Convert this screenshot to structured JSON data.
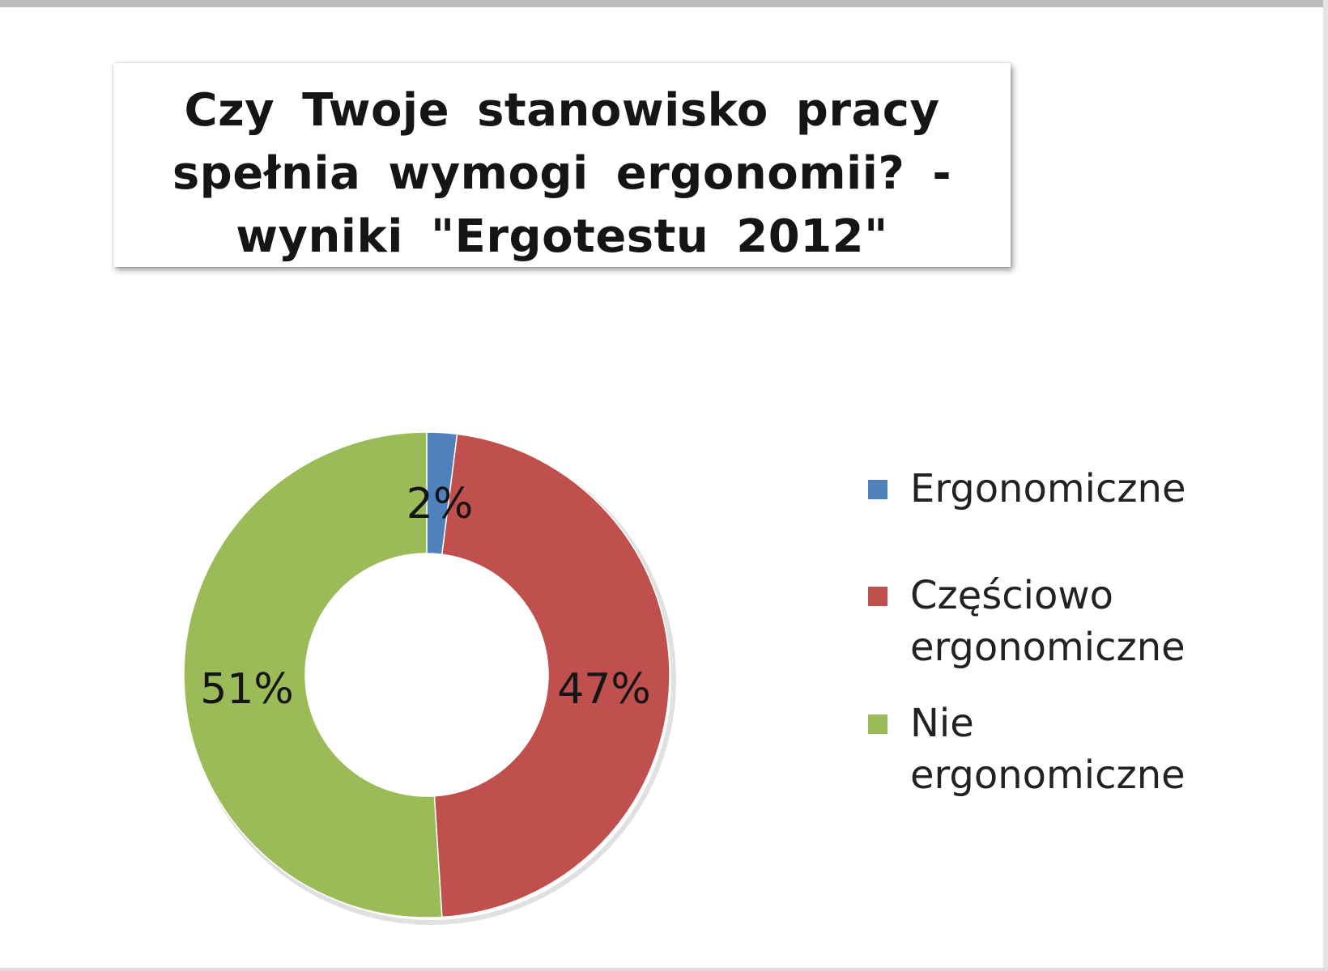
{
  "chart_data": {
    "type": "pie",
    "subtype": "donut",
    "title": "Czy Twoje stanowisko pracy spełnia wymogi ergonomii? - wyniki \"Ergotestu 2012\"",
    "title_lines": [
      "Czy Twoje stanowisko pracy",
      "spełnia wymogi ergonomii? -",
      "wyniki \"Ergotestu 2012\""
    ],
    "categories": [
      "Ergonomiczne",
      "Częściowo ergonomiczne",
      "Nie ergonomiczne"
    ],
    "legend_lines": [
      [
        "Ergonomiczne"
      ],
      [
        "Częściowo",
        "ergonomiczne"
      ],
      [
        "Nie",
        "ergonomiczne"
      ]
    ],
    "values": [
      2,
      47,
      51
    ],
    "unit": "%",
    "data_labels": [
      "2%",
      "47%",
      "51%"
    ],
    "colors": [
      "#4f81bd",
      "#c0504d",
      "#9bbb59"
    ],
    "legend_position": "right"
  }
}
